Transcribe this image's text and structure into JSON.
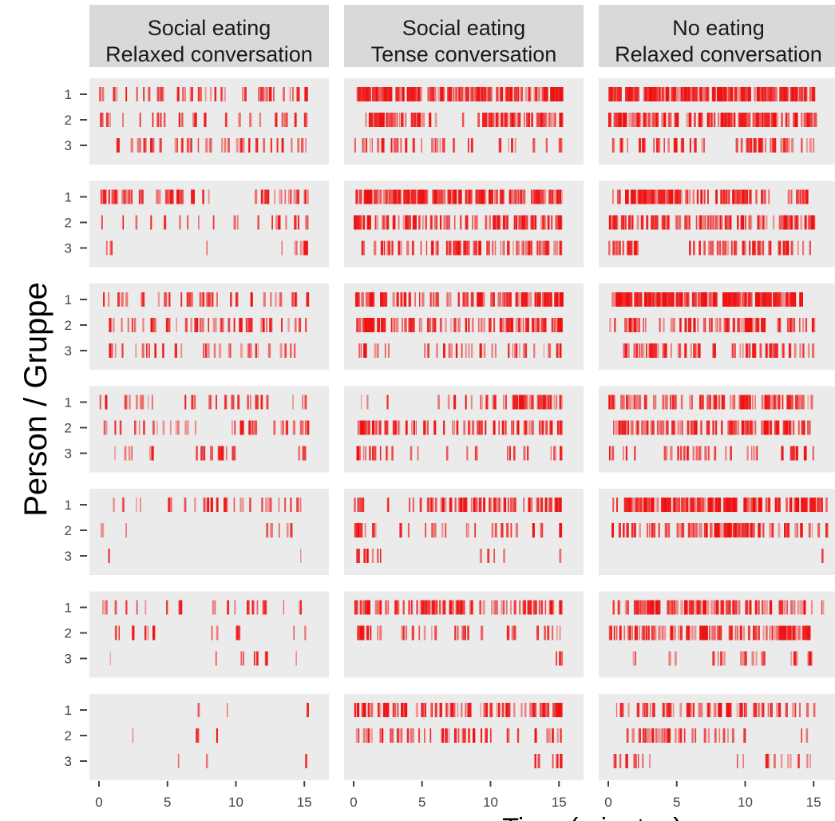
{
  "chart_data": {
    "type": "event raster",
    "ylabel": "Person / Gruppe",
    "xlabel": "Time (minutes)",
    "xlim": [
      0,
      16
    ],
    "x_ticks": [
      0,
      5,
      10,
      15
    ],
    "y_ticks": [
      "1",
      "2",
      "3"
    ],
    "facet_columns": [
      {
        "title_lines": [
          "Social eating",
          "Relaxed conversation"
        ],
        "xmax": 15.2
      },
      {
        "title_lines": [
          "Social eating",
          "Tense conversation"
        ],
        "xmax": 15.1
      },
      {
        "title_lines": [
          "No eating",
          "Relaxed conversation"
        ],
        "xmax": 16
      }
    ],
    "grid": false,
    "colors": {
      "event": "#ee1111",
      "panel_bg": "#ebebeb",
      "strip_bg": "#d9d9d9"
    },
    "density_scale": "0 = no events, 1 = continuous events",
    "density": [
      [
        [
          [
            0.15,
            0.3,
            0.1,
            0.4,
            0.45,
            0.2,
            0.4,
            0.3,
            0.35,
            0.1,
            0.3,
            0.4,
            0.5,
            0.2,
            0.4,
            0.3
          ],
          [
            0.35,
            0.1,
            0.1,
            0.1,
            0.4,
            0.1,
            0.4,
            0.3,
            0,
            0.1,
            0.3,
            0.1,
            0.1,
            0.3,
            0.3,
            0.2
          ],
          [
            0,
            0.2,
            0.4,
            0.4,
            0.2,
            0.3,
            0.4,
            0.3,
            0.2,
            0.2,
            0.45,
            0.35,
            0.2,
            0.1,
            0.3,
            0.1
          ]
        ],
        [
          [
            0.6,
            0.6,
            0.6,
            0.4,
            0.5,
            0.7,
            0.4,
            0.3,
            0,
            0,
            0,
            0.4,
            0.55,
            0.5,
            0.4,
            0.3
          ],
          [
            0.1,
            0.1,
            0.1,
            0.1,
            0.1,
            0.1,
            0.1,
            0.1,
            0.1,
            0.1,
            0.1,
            0.1,
            0.2,
            0.3,
            0.2,
            0.3
          ],
          [
            0.3,
            0,
            0,
            0,
            0,
            0,
            0,
            0.1,
            0,
            0,
            0,
            0,
            0,
            0.1,
            0.5,
            0.4
          ]
        ],
        [
          [
            0.3,
            0.3,
            0,
            0.3,
            0.4,
            0.2,
            0.6,
            0.5,
            0.2,
            0.4,
            0,
            0.3,
            0.2,
            0.3,
            0.3,
            0.2
          ],
          [
            0.2,
            0.2,
            0.3,
            0.3,
            0.3,
            0.3,
            0.4,
            0.5,
            0.4,
            0.4,
            0.6,
            0.4,
            0.4,
            0.2,
            0.2,
            0.1
          ],
          [
            0.3,
            0.2,
            0.1,
            0.3,
            0.3,
            0.2,
            0,
            0.3,
            0.2,
            0.2,
            0.4,
            0.3,
            0.1,
            0.4,
            0.1,
            0
          ]
        ],
        [
          [
            0.2,
            0.3,
            0.3,
            0.3,
            0,
            0,
            0.4,
            0,
            0.3,
            0.4,
            0.3,
            0.5,
            0.2,
            0,
            0.2,
            0.2
          ],
          [
            0.2,
            0.3,
            0.2,
            0.2,
            0.2,
            0.3,
            0.2,
            0.1,
            0,
            0.2,
            0.3,
            0.3,
            0.2,
            0.3,
            0.4,
            0.2
          ],
          [
            0,
            0.2,
            0.2,
            0.2,
            0,
            0,
            0,
            0.4,
            0.5,
            0.4,
            0,
            0,
            0,
            0,
            0.3,
            0.1
          ]
        ],
        [
          [
            0,
            0.3,
            0.2,
            0,
            0,
            0.2,
            0.3,
            0.4,
            0.4,
            0.4,
            0.3,
            0.3,
            0.3,
            0.4,
            0.2,
            0
          ],
          [
            0.2,
            0.1,
            0,
            0,
            0,
            0,
            0,
            0,
            0,
            0,
            0,
            0,
            0.2,
            0.3,
            0,
            0
          ],
          [
            0.1,
            0,
            0,
            0,
            0,
            0,
            0,
            0,
            0,
            0,
            0,
            0,
            0,
            0,
            0.1,
            0
          ]
        ],
        [
          [
            0.2,
            0.2,
            0.1,
            0.1,
            0.1,
            0.2,
            0,
            0,
            0.2,
            0.2,
            0.2,
            0.4,
            0.2,
            0.1,
            0.2,
            0
          ],
          [
            0,
            0.2,
            0.3,
            0.4,
            0,
            0,
            0,
            0,
            0.2,
            0,
            0.3,
            0,
            0,
            0,
            0.2,
            0
          ],
          [
            0.1,
            0,
            0,
            0,
            0,
            0,
            0,
            0,
            0.1,
            0,
            0.2,
            0.2,
            0.2,
            0,
            0.1,
            0
          ]
        ],
        [
          [
            0,
            0,
            0,
            0,
            0,
            0,
            0,
            0.2,
            0,
            0.1,
            0,
            0,
            0,
            0,
            0,
            0.1
          ],
          [
            0,
            0,
            0.1,
            0,
            0,
            0,
            0,
            0.3,
            0.1,
            0,
            0,
            0,
            0,
            0,
            0,
            0
          ],
          [
            0,
            0,
            0,
            0,
            0,
            0.1,
            0,
            0.1,
            0,
            0,
            0,
            0,
            0,
            0,
            0,
            0.1
          ]
        ]
      ],
      [
        [
          [
            0.9,
            0.9,
            0.8,
            0.9,
            0.8,
            0.6,
            0.7,
            0.5,
            0.7,
            0.8,
            0.6,
            0.8,
            0.6,
            0.8,
            0.9,
            0.8
          ],
          [
            0.1,
            0.7,
            0.7,
            0.6,
            0.7,
            0.4,
            0,
            0.1,
            0,
            0.6,
            0.7,
            0.7,
            0.6,
            0.7,
            0.4,
            0.8
          ],
          [
            0.4,
            0.4,
            0.4,
            0.6,
            0.3,
            0.3,
            0.3,
            0.2,
            0.2,
            0,
            0.3,
            0.3,
            0,
            0.1,
            0.2,
            0.2
          ]
        ],
        [
          [
            0.8,
            0.8,
            0.7,
            0.8,
            0.7,
            0.8,
            0.8,
            0.7,
            0.6,
            0.7,
            0.7,
            0.5,
            0.6,
            0.8,
            0.7,
            0.6
          ],
          [
            0.7,
            0.6,
            0.6,
            0.6,
            0.6,
            0.5,
            0.6,
            0.4,
            0.5,
            0.2,
            0.7,
            0.6,
            0.7,
            0.6,
            0.5,
            0.4
          ],
          [
            0.2,
            0.3,
            0.5,
            0.4,
            0.3,
            0.4,
            0.5,
            0.7,
            0.6,
            0.6,
            0.5,
            0.6,
            0.5,
            0.6,
            0.5,
            0.4
          ]
        ],
        [
          [
            0.7,
            0.7,
            0.3,
            0.5,
            0.4,
            0.5,
            0.3,
            0.3,
            0.5,
            0.7,
            0.6,
            0.8,
            0.7,
            0.8,
            0.8,
            0.7
          ],
          [
            0.8,
            0.7,
            0.6,
            0.5,
            0.6,
            0.6,
            0.3,
            0.5,
            0.5,
            0.6,
            0.4,
            0.7,
            0.6,
            0.7,
            0.6,
            0.6
          ],
          [
            0.5,
            0.3,
            0.3,
            0,
            0,
            0.2,
            0.3,
            0.3,
            0.3,
            0.4,
            0.2,
            0.4,
            0.3,
            0.2,
            0.3,
            0.3
          ]
        ],
        [
          [
            0.2,
            0,
            0.2,
            0,
            0,
            0,
            0.2,
            0.2,
            0.3,
            0.4,
            0.5,
            0.6,
            0.8,
            0.7,
            0.6,
            0.2
          ],
          [
            0.8,
            0.6,
            0.6,
            0.4,
            0.4,
            0.3,
            0.3,
            0.4,
            0.5,
            0.6,
            0.5,
            0.6,
            0.5,
            0.6,
            0.4,
            0.4
          ],
          [
            0.6,
            0.4,
            0.3,
            0,
            0.2,
            0,
            0.2,
            0,
            0.3,
            0,
            0,
            0.3,
            0.2,
            0,
            0.3,
            0.3
          ]
        ],
        [
          [
            0.5,
            0,
            0.2,
            0,
            0.3,
            0.5,
            0.6,
            0.5,
            0.5,
            0.6,
            0.6,
            0.6,
            0.6,
            0.6,
            0.7,
            0.3
          ],
          [
            0.6,
            0.2,
            0,
            0.2,
            0,
            0.3,
            0.2,
            0,
            0.3,
            0,
            0.4,
            0.3,
            0,
            0.3,
            0,
            0.3
          ],
          [
            0.6,
            0.3,
            0,
            0,
            0,
            0,
            0,
            0,
            0,
            0.2,
            0.2,
            0,
            0,
            0,
            0,
            0.2
          ]
        ],
        [
          [
            0.7,
            0.6,
            0.4,
            0.5,
            0.6,
            0.7,
            0.5,
            0.7,
            0.2,
            0.2,
            0.5,
            0.4,
            0.6,
            0.5,
            0.6,
            0.3
          ],
          [
            0.8,
            0.3,
            0,
            0.3,
            0.3,
            0.3,
            0,
            0.4,
            0.3,
            0.2,
            0,
            0.4,
            0,
            0.2,
            0.3,
            0.1
          ],
          [
            0,
            0,
            0,
            0,
            0,
            0,
            0,
            0,
            0,
            0,
            0,
            0,
            0,
            0,
            0.2,
            0.2
          ]
        ],
        [
          [
            0.7,
            0.5,
            0.6,
            0.6,
            0.4,
            0.6,
            0.5,
            0.6,
            0.5,
            0.6,
            0.4,
            0.5,
            0.3,
            0.7,
            0.9,
            0.6
          ],
          [
            0.4,
            0.4,
            0.4,
            0.3,
            0.4,
            0.3,
            0.5,
            0.4,
            0.5,
            0.4,
            0,
            0.3,
            0,
            0.3,
            0.4,
            0.2
          ],
          [
            0,
            0,
            0,
            0,
            0,
            0,
            0,
            0,
            0,
            0,
            0,
            0,
            0,
            0.3,
            0.3,
            0.5
          ]
        ]
      ],
      [
        [
          [
            0.9,
            0.9,
            0.9,
            0.9,
            0.9,
            0.9,
            0.8,
            0.8,
            0.9,
            0.9,
            0.8,
            0.9,
            0.8,
            0.9,
            0.9,
            0
          ],
          [
            0.8,
            0.8,
            0.7,
            0.5,
            0.7,
            0.6,
            0.6,
            0.5,
            0.8,
            0.8,
            0.7,
            0.7,
            0.6,
            0.7,
            0.7,
            0
          ],
          [
            0.5,
            0.1,
            0.3,
            0.4,
            0.5,
            0.4,
            0.3,
            0,
            0,
            0.3,
            0.7,
            0.6,
            0.6,
            0.3,
            0.4,
            0
          ]
        ],
        [
          [
            0.3,
            0.9,
            0.9,
            0.9,
            0.9,
            0.5,
            0.6,
            0.4,
            0.6,
            0.7,
            0.5,
            0.6,
            0,
            0.5,
            0.6,
            0
          ],
          [
            0.7,
            0.6,
            0.6,
            0.7,
            0.6,
            0.5,
            0.6,
            0.6,
            0.6,
            0.6,
            0.5,
            0.4,
            0.7,
            0.7,
            0.7,
            0
          ],
          [
            0.5,
            0.7,
            0,
            0,
            0,
            0.2,
            0.3,
            0.6,
            0.5,
            0.4,
            0.6,
            0.6,
            0.7,
            0.3,
            0.2,
            0
          ]
        ],
        [
          [
            0.9,
            0.9,
            0.9,
            0.9,
            0.9,
            0.9,
            0.9,
            0.8,
            0.8,
            0.9,
            0.9,
            0.9,
            0.9,
            0.9,
            0,
            0
          ],
          [
            0.2,
            0.7,
            0.3,
            0.2,
            0.2,
            0.6,
            0.4,
            0.5,
            0.6,
            0.6,
            0.7,
            0.6,
            0.3,
            0.5,
            0.5,
            0
          ],
          [
            0,
            0.5,
            0.6,
            0.6,
            0.4,
            0.5,
            0.5,
            0.3,
            0,
            0.4,
            0.5,
            0.5,
            0.6,
            0.3,
            0.3,
            0
          ]
        ],
        [
          [
            0.5,
            0.6,
            0.5,
            0.3,
            0.5,
            0.3,
            0.5,
            0.6,
            0.5,
            0.7,
            0.6,
            0.7,
            0.6,
            0.6,
            0.4,
            0
          ],
          [
            0.5,
            0.6,
            0.6,
            0.6,
            0.6,
            0.5,
            0.6,
            0.6,
            0.6,
            0.5,
            0.6,
            0.6,
            0.7,
            0.5,
            0.6,
            0
          ],
          [
            0.3,
            0.3,
            0,
            0,
            0.3,
            0.5,
            0.4,
            0.4,
            0.3,
            0,
            0.4,
            0,
            0.3,
            0.5,
            0.4,
            0
          ]
        ],
        [
          [
            0.2,
            0.8,
            0.8,
            0.7,
            0.8,
            0.8,
            0.7,
            0.8,
            0.8,
            0.8,
            0.7,
            0.6,
            0.6,
            0.7,
            0.8,
            0.6
          ],
          [
            0.3,
            0.6,
            0.3,
            0.4,
            0.5,
            0.6,
            0.5,
            0.7,
            0.8,
            0.7,
            0.6,
            0.6,
            0.3,
            0.4,
            0.5,
            0.3
          ],
          [
            0,
            0,
            0,
            0,
            0,
            0,
            0,
            0,
            0,
            0,
            0,
            0,
            0,
            0,
            0,
            0.1
          ]
        ],
        [
          [
            0.3,
            0.5,
            0.7,
            0.7,
            0.6,
            0.7,
            0.7,
            0.7,
            0.6,
            0.6,
            0.6,
            0.5,
            0.4,
            0.5,
            0.3,
            0.2
          ],
          [
            0.5,
            0.6,
            0.5,
            0.5,
            0.6,
            0.6,
            0.7,
            0.6,
            0.6,
            0.5,
            0.6,
            0.4,
            0.8,
            0.8,
            0.7,
            0
          ],
          [
            0,
            0.2,
            0,
            0,
            0.2,
            0,
            0,
            0.3,
            0.2,
            0.3,
            0.3,
            0.2,
            0,
            0.3,
            0.3,
            0
          ]
        ],
        [
          [
            0.3,
            0.2,
            0.5,
            0.6,
            0.4,
            0.5,
            0.4,
            0.6,
            0.7,
            0.6,
            0.4,
            0.5,
            0.4,
            0.4,
            0.2,
            0
          ],
          [
            0,
            0.3,
            0.6,
            0.6,
            0.5,
            0.4,
            0.4,
            0.3,
            0.3,
            0.2,
            0,
            0,
            0,
            0,
            0.2,
            0
          ],
          [
            0.3,
            0.4,
            0.3,
            0,
            0,
            0,
            0,
            0,
            0,
            0.2,
            0,
            0.3,
            0.3,
            0.3,
            0.2,
            0
          ]
        ]
      ]
    ]
  }
}
